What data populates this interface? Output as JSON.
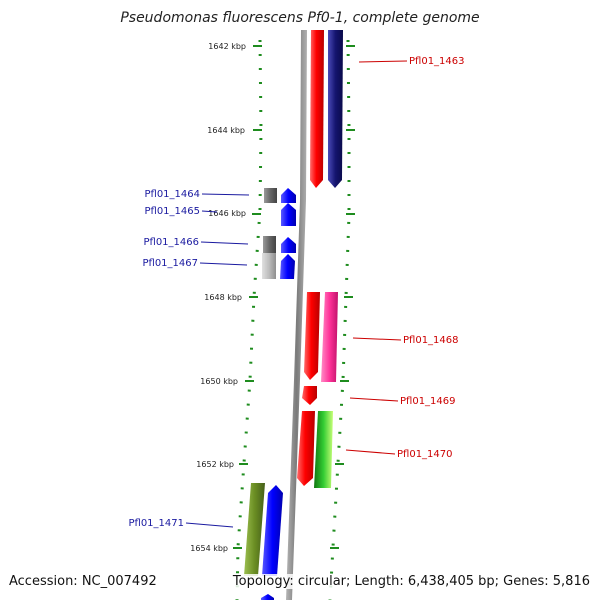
{
  "title": "Pseudomonas fluorescens Pf0-1, complete genome",
  "footer": {
    "accession": "Accession: NC_007492",
    "summary": "Topology: circular; Length: 6,438,405 bp; Genes: 5,816"
  },
  "scale_ticks": [
    "1642 kbp",
    "1644 kbp",
    "1646 kbp",
    "1648 kbp",
    "1650 kbp",
    "1652 kbp",
    "1654 kbp"
  ],
  "genes_right": [
    {
      "label": "Pfl01_1463",
      "color": "#cc0000"
    },
    {
      "label": "Pfl01_1468",
      "color": "#cc0000"
    },
    {
      "label": "Pfl01_1469",
      "color": "#cc0000"
    },
    {
      "label": "Pfl01_1470",
      "color": "#cc0000"
    }
  ],
  "genes_left": [
    {
      "label": "Pfl01_1464",
      "color": "#1a1aa0"
    },
    {
      "label": "Pfl01_1465",
      "color": "#1a1aa0"
    },
    {
      "label": "Pfl01_1466",
      "color": "#1a1aa0"
    },
    {
      "label": "Pfl01_1467",
      "color": "#1a1aa0"
    },
    {
      "label": "Pfl01_1471",
      "color": "#1a1aa0"
    }
  ],
  "colors": {
    "backbone": "#8c8c8c",
    "scale_green": "#1e8c1e",
    "red": "#ff0000",
    "navy": "#1a1a8c",
    "blue": "#0000ff",
    "pink": "#ff3399",
    "olive": "#6b8e23",
    "green": "#22aa22",
    "grey": "#777777"
  }
}
